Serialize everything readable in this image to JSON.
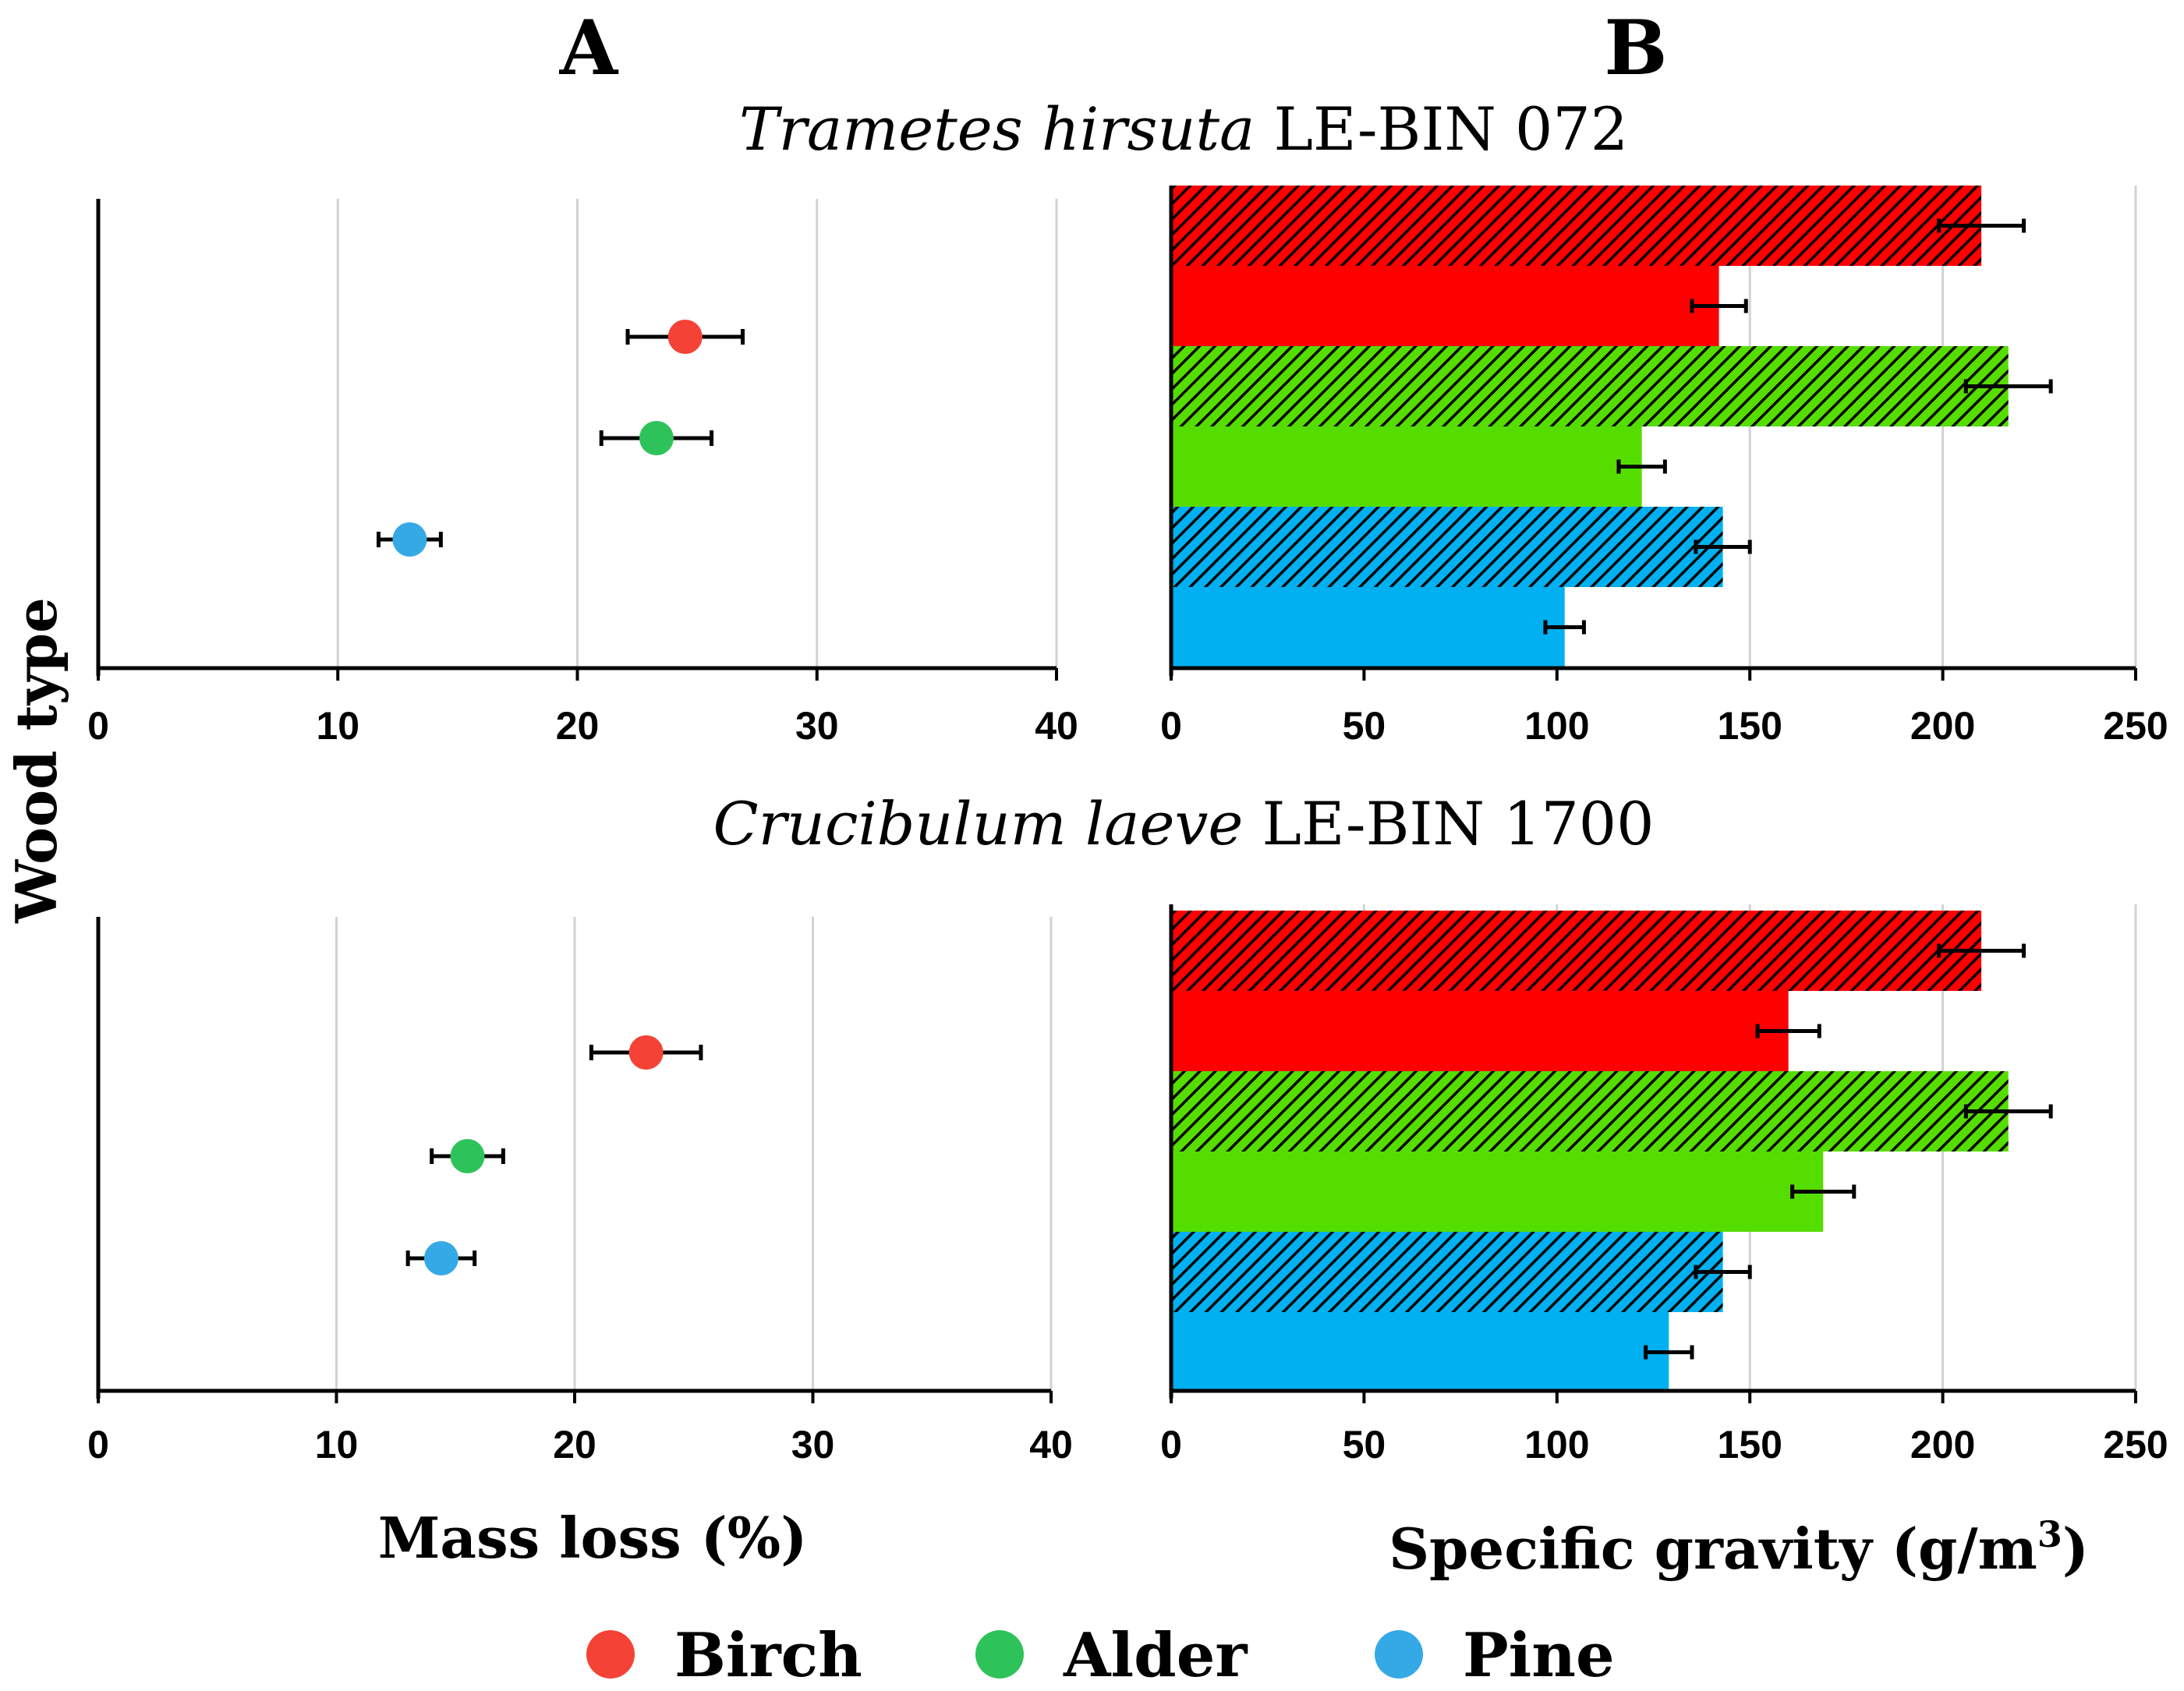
{
  "panel_labels": {
    "a": "A",
    "b": "B"
  },
  "titles": [
    {
      "italic": "Trametes hirsuta",
      "rest": " LE-BIN 072"
    },
    {
      "italic": "Crucibulum laeve",
      "rest": " LE-BIN 1700"
    }
  ],
  "axis_labels": {
    "y": "Wood type",
    "x_a": "Mass loss (%)",
    "x_b_main": "Specific gravity (g/m",
    "x_b_sup": "3",
    "x_b_close": ")"
  },
  "legend": [
    {
      "label": "Birch",
      "color": "#f44336"
    },
    {
      "label": "Alder",
      "color": "#2ec35a"
    },
    {
      "label": "Pine",
      "color": "#35a9e6"
    }
  ],
  "colors": {
    "birch": "#ff0000",
    "alder": "#55dd00",
    "pine": "#00b0f0",
    "birch_dot": "#f44336",
    "alder_dot": "#2ec35a",
    "pine_dot": "#35a9e6"
  },
  "chart_data": [
    {
      "panel": "A",
      "fungus": "Trametes hirsuta LE-BIN 072",
      "type": "scatter",
      "xlabel": "Mass loss (%)",
      "ylabel": "Wood type",
      "xlim": [
        0,
        40
      ],
      "xticks": [
        0,
        10,
        20,
        30,
        40
      ],
      "grid": true,
      "points": [
        {
          "category": "Birch",
          "x": 24.5,
          "err": 2.4
        },
        {
          "category": "Alder",
          "x": 23.3,
          "err": 2.3
        },
        {
          "category": "Pine",
          "x": 13.0,
          "err": 1.3
        }
      ]
    },
    {
      "panel": "B",
      "fungus": "Trametes hirsuta LE-BIN 072",
      "type": "bar",
      "orientation": "horizontal",
      "xlabel": "Specific gravity (g/m3)",
      "xlim": [
        0,
        250
      ],
      "xticks": [
        0,
        50,
        100,
        150,
        200,
        250
      ],
      "grid": true,
      "bars": [
        {
          "category": "Birch",
          "state": "hatched",
          "value": 210,
          "err": 11
        },
        {
          "category": "Birch",
          "state": "solid",
          "value": 142,
          "err": 7
        },
        {
          "category": "Alder",
          "state": "hatched",
          "value": 217,
          "err": 11
        },
        {
          "category": "Alder",
          "state": "solid",
          "value": 122,
          "err": 6
        },
        {
          "category": "Pine",
          "state": "hatched",
          "value": 143,
          "err": 7
        },
        {
          "category": "Pine",
          "state": "solid",
          "value": 102,
          "err": 5
        }
      ]
    },
    {
      "panel": "A",
      "fungus": "Crucibulum laeve LE-BIN 1700",
      "type": "scatter",
      "xlabel": "Mass loss (%)",
      "ylabel": "Wood type",
      "xlim": [
        0,
        40
      ],
      "xticks": [
        0,
        10,
        20,
        30,
        40
      ],
      "grid": true,
      "points": [
        {
          "category": "Birch",
          "x": 23.0,
          "err": 2.3
        },
        {
          "category": "Alder",
          "x": 15.5,
          "err": 1.5
        },
        {
          "category": "Pine",
          "x": 14.4,
          "err": 1.4
        }
      ]
    },
    {
      "panel": "B",
      "fungus": "Crucibulum laeve LE-BIN 1700",
      "type": "bar",
      "orientation": "horizontal",
      "xlabel": "Specific gravity (g/m3)",
      "xlim": [
        0,
        250
      ],
      "xticks": [
        0,
        50,
        100,
        150,
        200,
        250
      ],
      "grid": true,
      "bars": [
        {
          "category": "Birch",
          "state": "hatched",
          "value": 210,
          "err": 11
        },
        {
          "category": "Birch",
          "state": "solid",
          "value": 160,
          "err": 8
        },
        {
          "category": "Alder",
          "state": "hatched",
          "value": 217,
          "err": 11
        },
        {
          "category": "Alder",
          "state": "solid",
          "value": 169,
          "err": 8
        },
        {
          "category": "Pine",
          "state": "hatched",
          "value": 143,
          "err": 7
        },
        {
          "category": "Pine",
          "state": "solid",
          "value": 129,
          "err": 6
        }
      ]
    }
  ]
}
